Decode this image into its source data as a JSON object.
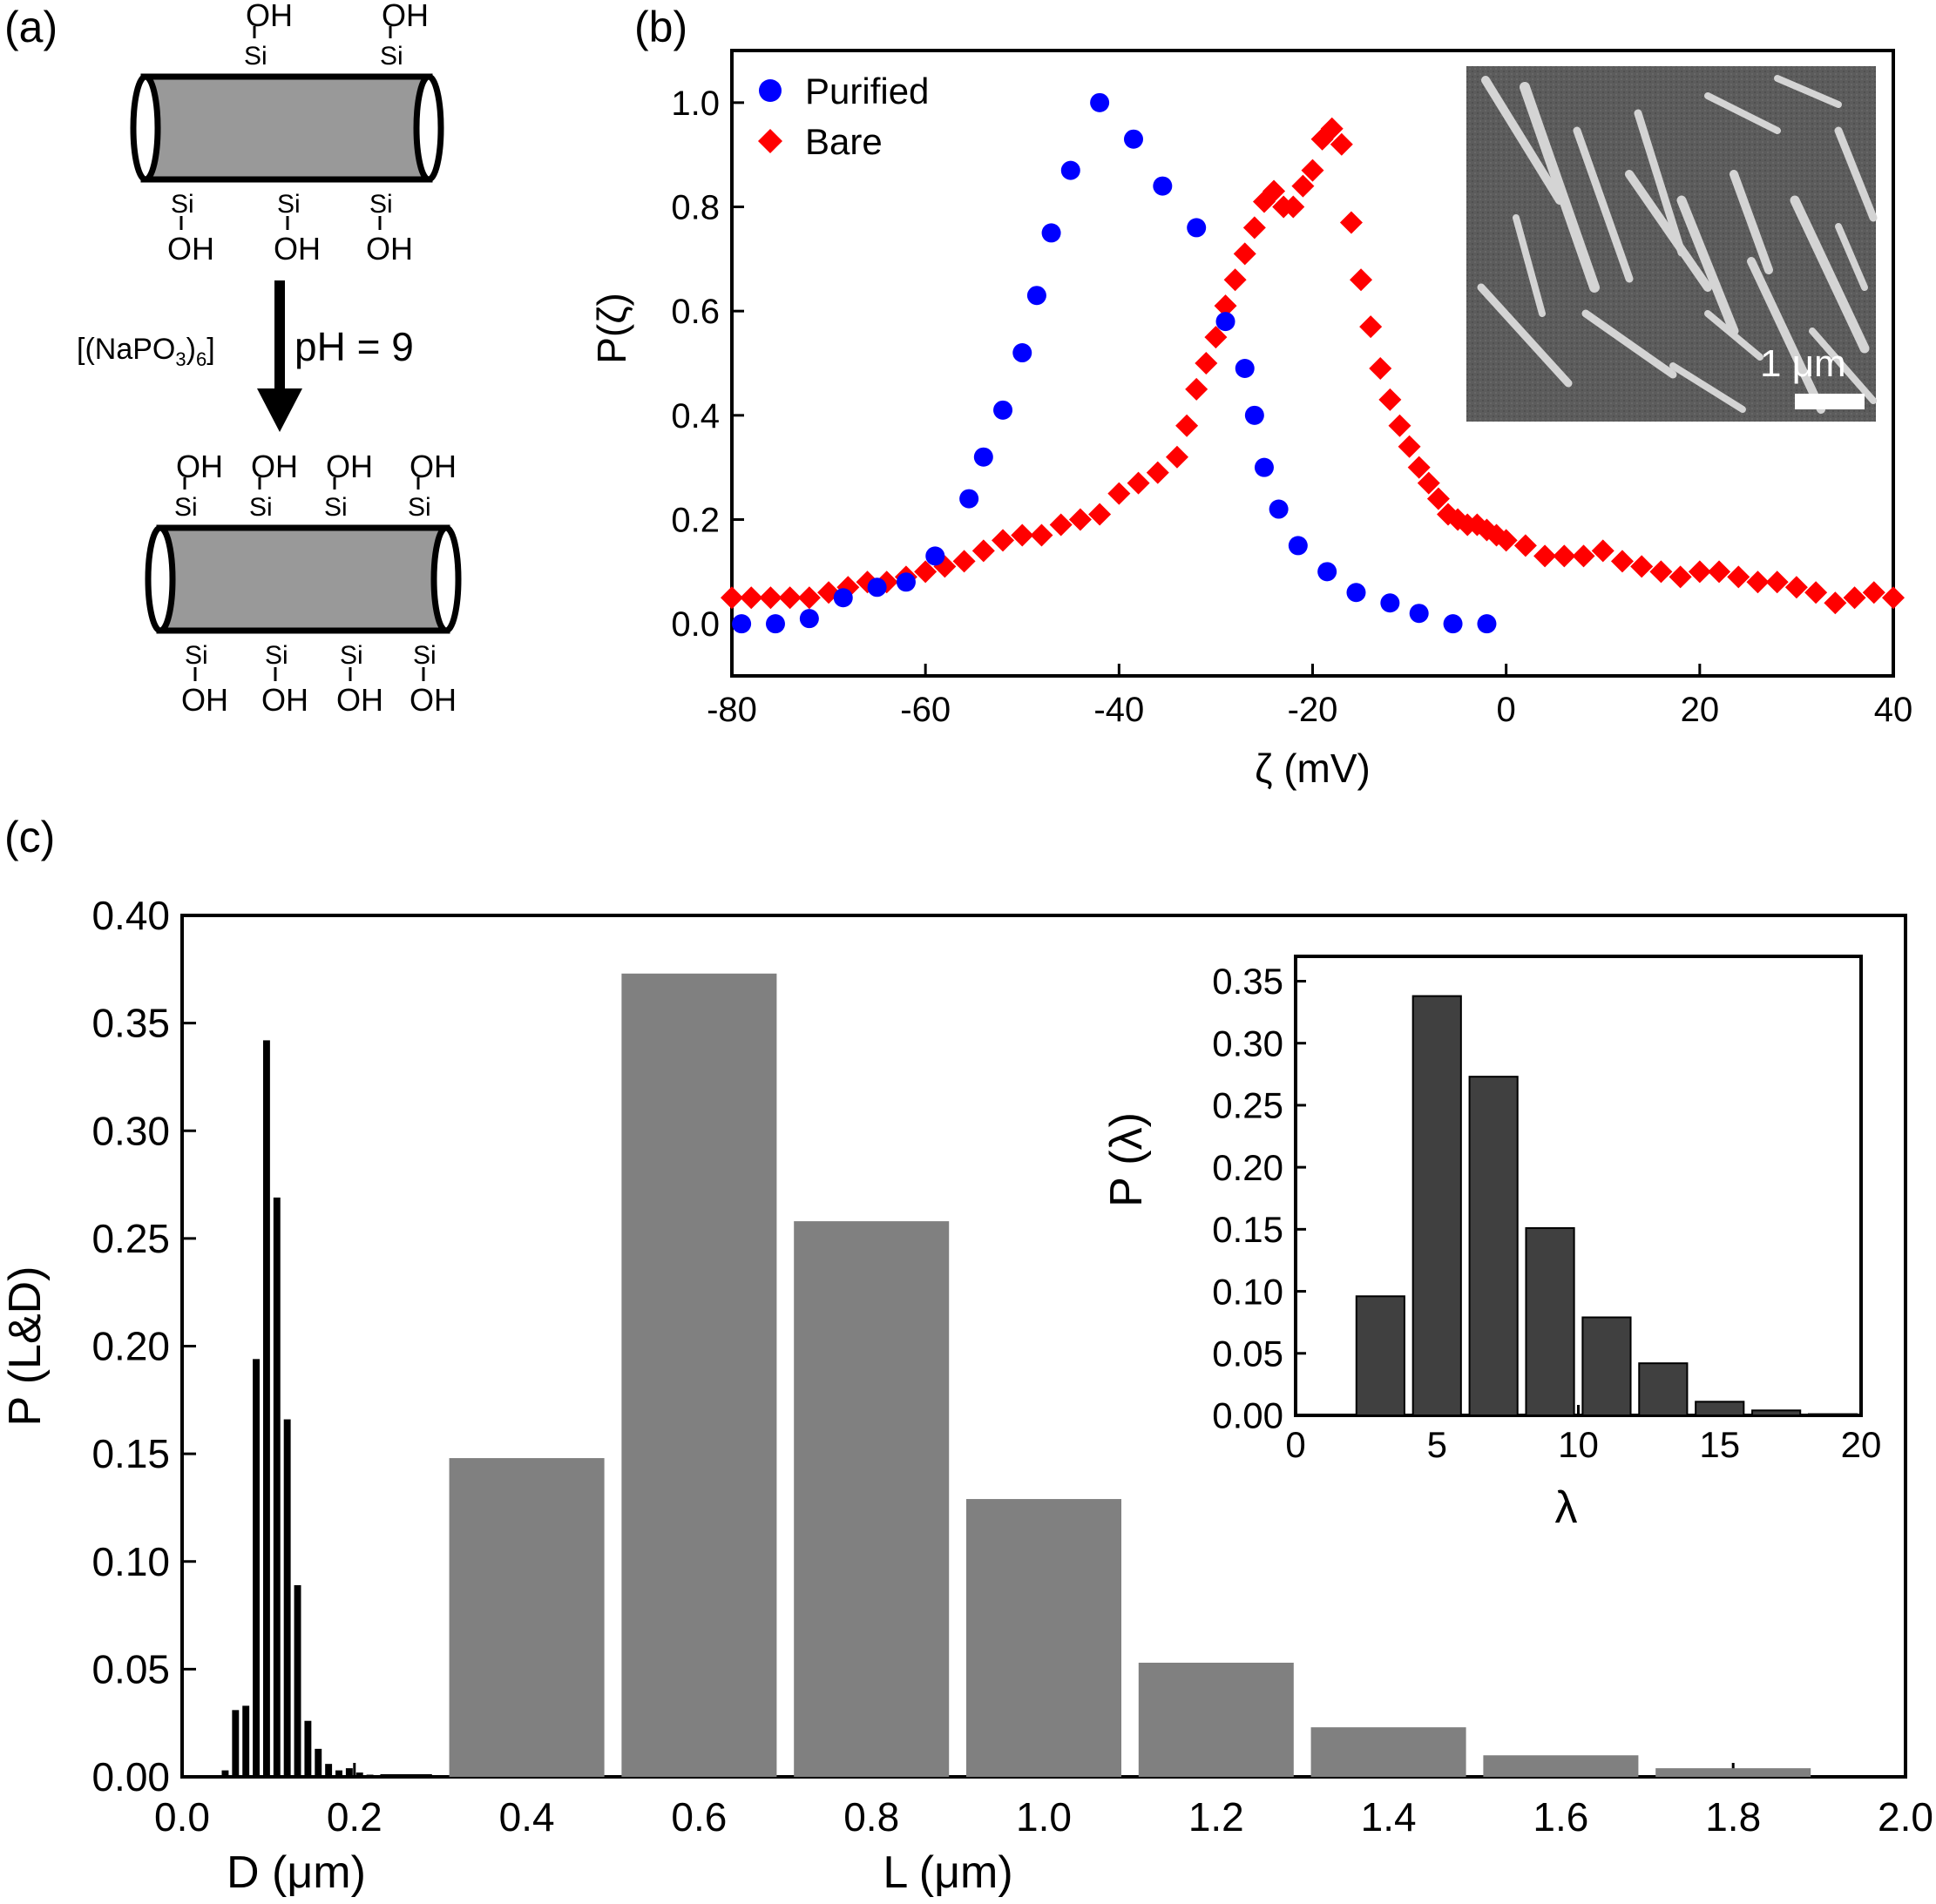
{
  "panels": {
    "a": "(a)",
    "b": "(b)",
    "c": "(c)"
  },
  "schematic": {
    "reagent": "[(NaPO",
    "reagent_sub3": "3",
    "reagent_close": ")",
    "reagent_sub6": "6",
    "reagent_end": "]",
    "ph": "pH = 9",
    "oh": "OH",
    "si": "Si"
  },
  "colors": {
    "purified": "#0000ff",
    "bare": "#ff0000",
    "length_bars": "#808080",
    "diameter_bars": "#000000",
    "lambda_bars": "#404040",
    "rod_fill": "#999999",
    "sem_bg": "#5a5a5a"
  },
  "chart_data": [
    {
      "id": "b",
      "type": "scatter",
      "xlabel": "ζ (mV)",
      "ylabel": "P(ζ)",
      "xlim": [
        -80,
        40
      ],
      "ylim": [
        -0.1,
        1.1
      ],
      "xticks": [
        -80,
        -60,
        -40,
        -20,
        0,
        20,
        40
      ],
      "xtick_labels": [
        "-80",
        "-60",
        "-40",
        "-20",
        "0",
        "20",
        "40"
      ],
      "yticks": [
        0.0,
        0.2,
        0.4,
        0.6,
        0.8,
        1.0
      ],
      "ytick_labels": [
        "0.0",
        "0.2",
        "0.4",
        "0.6",
        "0.8",
        "1.0"
      ],
      "legend_position": "top-left",
      "inset_image": {
        "type": "SEM micrograph",
        "scale_bar": "1 μm"
      },
      "series": [
        {
          "name": "Purified",
          "marker": "circle",
          "color": "#0000ff",
          "x": [
            -79,
            -75.5,
            -72,
            -68.5,
            -65,
            -62,
            -59,
            -55.5,
            -54,
            -52,
            -50,
            -48.5,
            -47,
            -45,
            -42,
            -38.5,
            -35.5,
            -32,
            -29,
            -27,
            -26,
            -25,
            -23.5,
            -21.5,
            -18.5,
            -15.5,
            -12,
            -9,
            -5.5,
            -2
          ],
          "y": [
            0.0,
            0.0,
            0.01,
            0.05,
            0.07,
            0.08,
            0.13,
            0.24,
            0.32,
            0.41,
            0.52,
            0.63,
            0.75,
            0.87,
            1.0,
            0.93,
            0.84,
            0.76,
            0.58,
            0.49,
            0.4,
            0.3,
            0.22,
            0.15,
            0.1,
            0.06,
            0.04,
            0.02,
            0.0,
            0.0
          ]
        },
        {
          "name": "Bare",
          "marker": "diamond",
          "color": "#ff0000",
          "x": [
            -80,
            -78,
            -76,
            -74,
            -72,
            -70,
            -68,
            -66,
            -64,
            -62,
            -60,
            -58,
            -56,
            -54,
            -52,
            -50,
            -48,
            -46,
            -44,
            -42,
            -40,
            -38,
            -36,
            -34,
            -33,
            -32,
            -31,
            -30,
            -29,
            -28,
            -27,
            -26,
            -25,
            -24,
            -23,
            -22,
            -21,
            -20,
            -19,
            -18,
            -17,
            -16,
            -15,
            -14,
            -13,
            -12,
            -11,
            -10,
            -9,
            -8,
            -7,
            -6,
            -5,
            -4,
            -3,
            -2,
            -1,
            0,
            2,
            4,
            6,
            8,
            10,
            12,
            14,
            16,
            18,
            20,
            22,
            24,
            26,
            28,
            30,
            32,
            34,
            36,
            38,
            40
          ],
          "y": [
            0.05,
            0.05,
            0.05,
            0.05,
            0.05,
            0.06,
            0.07,
            0.08,
            0.08,
            0.09,
            0.1,
            0.11,
            0.12,
            0.14,
            0.16,
            0.17,
            0.17,
            0.19,
            0.2,
            0.21,
            0.25,
            0.27,
            0.29,
            0.32,
            0.38,
            0.45,
            0.5,
            0.55,
            0.61,
            0.66,
            0.71,
            0.76,
            0.81,
            0.83,
            0.8,
            0.8,
            0.84,
            0.87,
            0.93,
            0.95,
            0.92,
            0.77,
            0.66,
            0.57,
            0.49,
            0.43,
            0.38,
            0.34,
            0.3,
            0.27,
            0.24,
            0.21,
            0.2,
            0.19,
            0.19,
            0.18,
            0.17,
            0.16,
            0.15,
            0.13,
            0.13,
            0.13,
            0.14,
            0.12,
            0.11,
            0.1,
            0.09,
            0.1,
            0.1,
            0.09,
            0.08,
            0.08,
            0.07,
            0.06,
            0.04,
            0.05,
            0.06,
            0.05
          ]
        }
      ]
    },
    {
      "id": "c",
      "type": "bar",
      "xlabel_d": "D (μm)",
      "xlabel_l": "L (μm)",
      "ylabel": "P (L&D)",
      "xlim": [
        0.0,
        2.0
      ],
      "ylim": [
        0.0,
        0.4
      ],
      "xticks": [
        0.0,
        0.2,
        0.4,
        0.6,
        0.8,
        1.0,
        1.2,
        1.4,
        1.6,
        1.8,
        2.0
      ],
      "xtick_labels": [
        "0.0",
        "0.2",
        "0.4",
        "0.6",
        "0.8",
        "1.0",
        "1.2",
        "1.4",
        "1.6",
        "1.8",
        "2.0"
      ],
      "yticks": [
        0.0,
        0.05,
        0.1,
        0.15,
        0.2,
        0.25,
        0.3,
        0.35,
        0.4
      ],
      "ytick_labels": [
        "0.00",
        "0.05",
        "0.10",
        "0.15",
        "0.20",
        "0.25",
        "0.30",
        "0.35",
        "0.40"
      ],
      "series": [
        {
          "id": "L",
          "color": "#808080",
          "bar_width": 0.18,
          "x": [
            0.4,
            0.6,
            0.8,
            1.0,
            1.2,
            1.4,
            1.6,
            1.8
          ],
          "values": [
            0.148,
            0.373,
            0.258,
            0.129,
            0.053,
            0.023,
            0.01,
            0.004
          ]
        },
        {
          "id": "D",
          "color": "#000000",
          "bar_width": 0.008,
          "x": [
            0.05,
            0.062,
            0.074,
            0.086,
            0.098,
            0.11,
            0.122,
            0.134,
            0.146,
            0.158,
            0.17,
            0.182,
            0.194,
            0.206,
            0.218
          ],
          "values": [
            0.003,
            0.031,
            0.033,
            0.194,
            0.342,
            0.269,
            0.166,
            0.089,
            0.026,
            0.013,
            0.006,
            0.003,
            0.004,
            0.002,
            0.001
          ]
        }
      ]
    },
    {
      "id": "c-inset",
      "type": "bar",
      "xlabel": "λ",
      "ylabel": "P (λ)",
      "xlim": [
        0,
        20
      ],
      "ylim": [
        0.0,
        0.37
      ],
      "xticks": [
        0,
        5,
        10,
        15,
        20
      ],
      "xtick_labels": [
        "0",
        "5",
        "10",
        "15",
        "20"
      ],
      "yticks": [
        0.0,
        0.05,
        0.1,
        0.15,
        0.2,
        0.25,
        0.3,
        0.35
      ],
      "ytick_labels": [
        "0.00",
        "0.05",
        "0.10",
        "0.15",
        "0.20",
        "0.25",
        "0.30",
        "0.35"
      ],
      "bar_width": 1.7,
      "x": [
        3,
        5,
        7,
        9,
        11,
        13,
        15,
        17,
        19
      ],
      "values": [
        0.096,
        0.338,
        0.273,
        0.151,
        0.079,
        0.042,
        0.011,
        0.004,
        0.001
      ]
    }
  ]
}
